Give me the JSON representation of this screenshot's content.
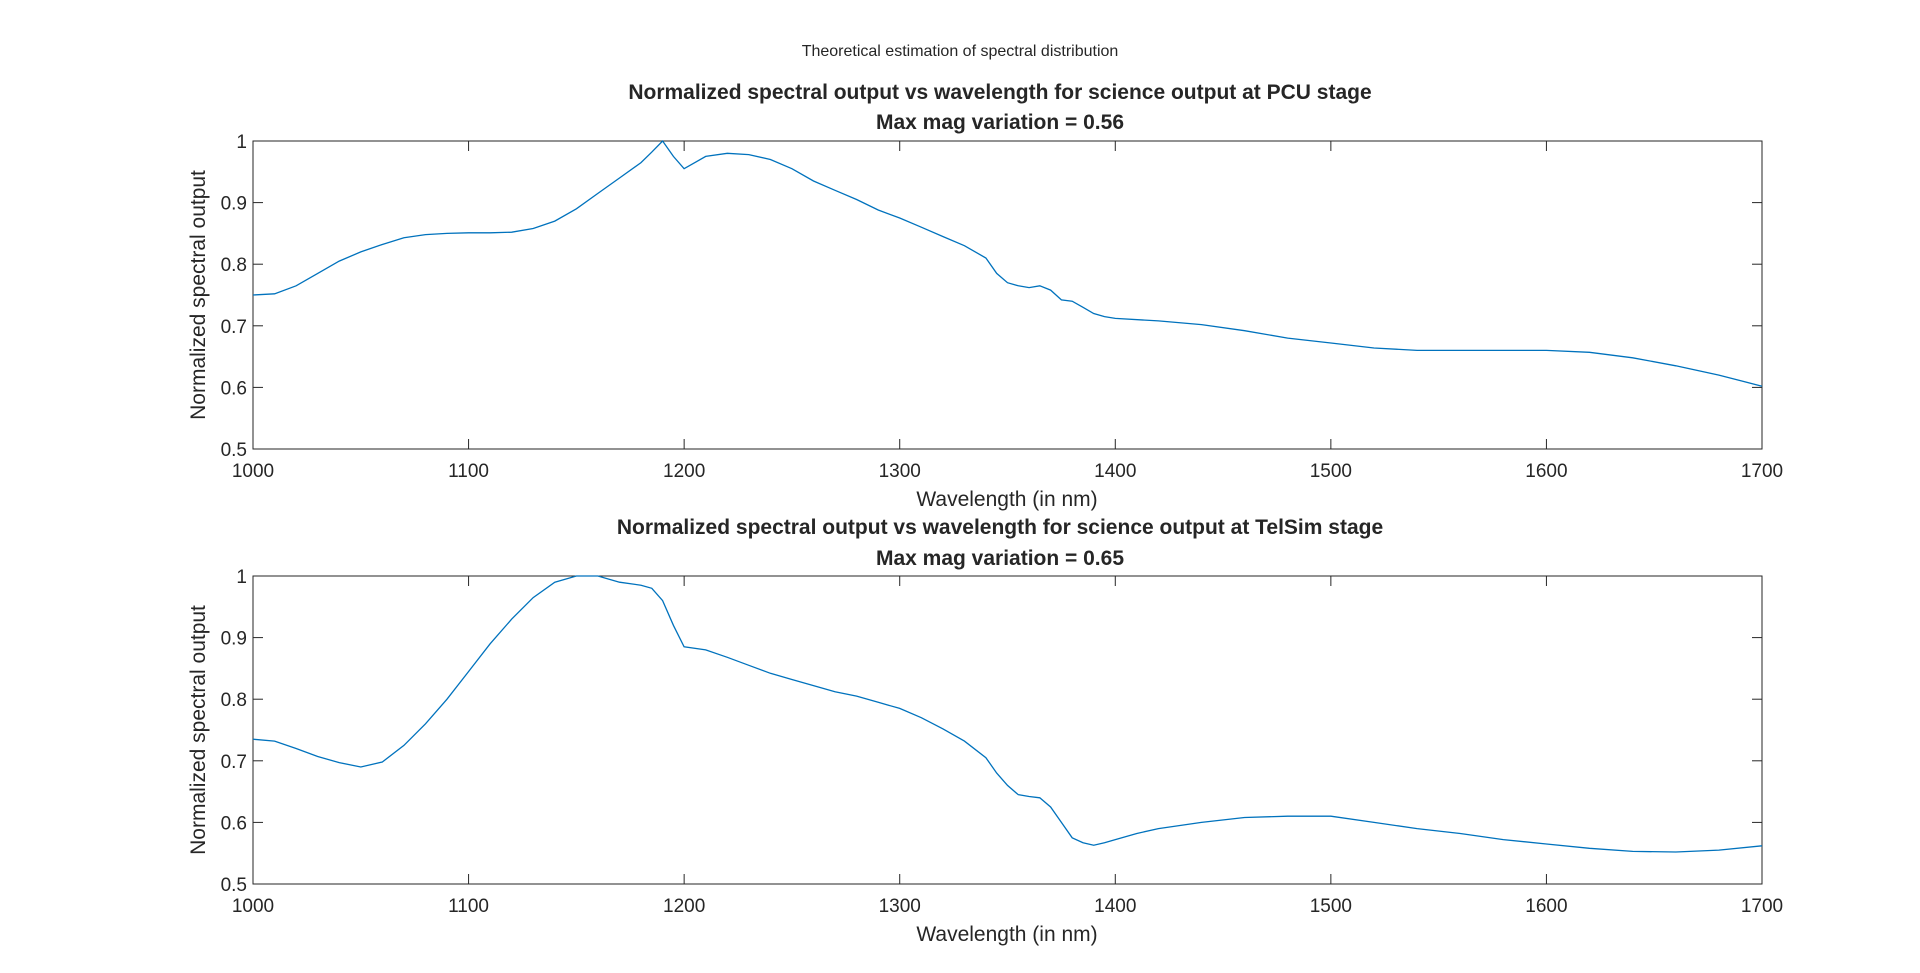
{
  "figure": {
    "title": "Theoretical estimation of spectral distribution",
    "line_color": "#0072BD",
    "axes_color": "#262626"
  },
  "chart_data": [
    {
      "type": "line",
      "title": "Normalized spectral output vs wavelength for science output at PCU stage",
      "subtitle": "Max mag variation = 0.56",
      "xlabel": "Wavelength (in nm)",
      "ylabel": "Normalized spectral output",
      "xlim": [
        1000,
        1700
      ],
      "ylim": [
        0.5,
        1
      ],
      "xticks": [
        "1000",
        "1100",
        "1200",
        "1300",
        "1400",
        "1500",
        "1600",
        "1700"
      ],
      "yticks": [
        "0.5",
        "0.6",
        "0.7",
        "0.8",
        "0.9",
        "1"
      ],
      "grid": false,
      "series": [
        {
          "x": [
            1000,
            1010,
            1020,
            1030,
            1040,
            1050,
            1060,
            1070,
            1080,
            1090,
            1100,
            1110,
            1120,
            1130,
            1140,
            1150,
            1160,
            1170,
            1180,
            1185,
            1190,
            1195,
            1200,
            1205,
            1210,
            1220,
            1230,
            1240,
            1250,
            1260,
            1270,
            1280,
            1290,
            1300,
            1310,
            1320,
            1330,
            1340,
            1345,
            1350,
            1355,
            1360,
            1365,
            1370,
            1375,
            1380,
            1385,
            1390,
            1395,
            1400,
            1420,
            1440,
            1460,
            1480,
            1500,
            1520,
            1540,
            1560,
            1580,
            1600,
            1620,
            1640,
            1660,
            1680,
            1700
          ],
          "y": [
            0.75,
            0.752,
            0.765,
            0.785,
            0.805,
            0.82,
            0.832,
            0.843,
            0.848,
            0.85,
            0.851,
            0.851,
            0.852,
            0.858,
            0.87,
            0.89,
            0.915,
            0.94,
            0.965,
            0.982,
            1.0,
            0.975,
            0.955,
            0.965,
            0.975,
            0.98,
            0.978,
            0.97,
            0.955,
            0.935,
            0.92,
            0.905,
            0.888,
            0.875,
            0.86,
            0.845,
            0.83,
            0.81,
            0.785,
            0.77,
            0.765,
            0.762,
            0.765,
            0.758,
            0.742,
            0.74,
            0.73,
            0.72,
            0.715,
            0.712,
            0.708,
            0.702,
            0.692,
            0.68,
            0.672,
            0.664,
            0.66,
            0.66,
            0.66,
            0.66,
            0.657,
            0.648,
            0.635,
            0.62,
            0.602
          ]
        }
      ]
    },
    {
      "type": "line",
      "title": "Normalized spectral output vs wavelength for science output at TelSim stage",
      "subtitle": "Max mag variation = 0.65",
      "xlabel": "Wavelength (in nm)",
      "ylabel": "Normalized spectral output",
      "xlim": [
        1000,
        1700
      ],
      "ylim": [
        0.5,
        1
      ],
      "xticks": [
        "1000",
        "1100",
        "1200",
        "1300",
        "1400",
        "1500",
        "1600",
        "1700"
      ],
      "yticks": [
        "0.5",
        "0.6",
        "0.7",
        "0.8",
        "0.9",
        "1"
      ],
      "grid": false,
      "series": [
        {
          "x": [
            1000,
            1010,
            1020,
            1030,
            1040,
            1050,
            1060,
            1070,
            1080,
            1090,
            1100,
            1110,
            1120,
            1130,
            1140,
            1150,
            1160,
            1170,
            1180,
            1185,
            1190,
            1195,
            1200,
            1210,
            1220,
            1230,
            1240,
            1250,
            1260,
            1270,
            1280,
            1290,
            1300,
            1310,
            1320,
            1330,
            1340,
            1345,
            1350,
            1355,
            1360,
            1365,
            1370,
            1375,
            1380,
            1385,
            1390,
            1395,
            1400,
            1410,
            1420,
            1440,
            1460,
            1480,
            1500,
            1520,
            1540,
            1560,
            1580,
            1600,
            1620,
            1640,
            1660,
            1680,
            1700
          ],
          "y": [
            0.735,
            0.732,
            0.72,
            0.707,
            0.697,
            0.69,
            0.698,
            0.725,
            0.76,
            0.8,
            0.845,
            0.89,
            0.93,
            0.965,
            0.99,
            1.0,
            1.0,
            0.99,
            0.985,
            0.98,
            0.96,
            0.92,
            0.885,
            0.88,
            0.868,
            0.855,
            0.842,
            0.832,
            0.822,
            0.812,
            0.805,
            0.795,
            0.785,
            0.77,
            0.752,
            0.732,
            0.705,
            0.68,
            0.66,
            0.645,
            0.642,
            0.64,
            0.625,
            0.6,
            0.575,
            0.567,
            0.563,
            0.567,
            0.572,
            0.582,
            0.59,
            0.6,
            0.608,
            0.61,
            0.61,
            0.6,
            0.59,
            0.582,
            0.572,
            0.565,
            0.558,
            0.553,
            0.552,
            0.555,
            0.562
          ]
        }
      ]
    }
  ]
}
